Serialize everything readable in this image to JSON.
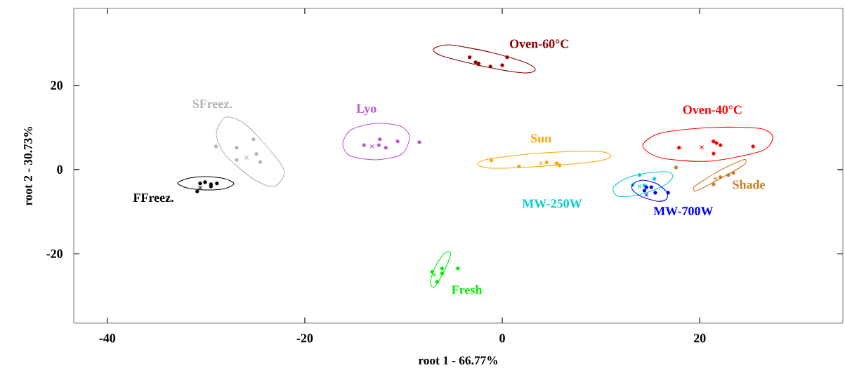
{
  "chart_data": {
    "type": "scatter",
    "xlabel": "root 1 - 66.77%",
    "ylabel": "root 2 - 30.73%",
    "xlim": [
      -43.4,
      34.5
    ],
    "ylim": [
      -36.5,
      38.3
    ],
    "xticks": [
      -40,
      -20,
      0,
      20
    ],
    "yticks": [
      -20,
      0,
      20
    ],
    "series": [
      {
        "name": "Oven-60°C",
        "marker": "circle",
        "color": "#8b0000",
        "x": [
          -3.3,
          -2.4,
          -1.2,
          0.0,
          -2.7,
          0.5
        ],
        "values": [
          26.7,
          25.2,
          24.5,
          24.8,
          25.5,
          26.7
        ]
      },
      {
        "marker": "cross",
        "color": "#8b0000",
        "x": [
          -2.4
        ],
        "values": [
          25.0
        ]
      },
      {
        "name": "SFreez.",
        "marker": "circle",
        "color": "#b3b3b3",
        "x": [
          -25.2,
          -26.9,
          -24.9,
          -24.5,
          -29.0,
          -26.9
        ],
        "values": [
          7.2,
          5.2,
          3.7,
          1.8,
          5.5,
          2.3
        ]
      },
      {
        "marker": "cross",
        "color": "#b3b3b3",
        "x": [
          -25.9
        ],
        "values": [
          2.8
        ]
      },
      {
        "name": "Lyo",
        "marker": "circle",
        "color": "#ba55d3",
        "x": [
          -14.0,
          -12.4,
          -12.5,
          -11.8,
          -10.6,
          -8.4
        ],
        "values": [
          5.8,
          7.2,
          5.8,
          5.2,
          6.7,
          6.5
        ]
      },
      {
        "marker": "cross",
        "color": "#ba55d3",
        "x": [
          -13.2
        ],
        "values": [
          5.5
        ]
      },
      {
        "name": "Oven-40°C",
        "marker": "circle",
        "color": "#ff0000",
        "x": [
          17.9,
          21.4,
          21.7,
          21.4,
          22.1,
          25.4
        ],
        "values": [
          5.2,
          6.7,
          6.3,
          3.8,
          5.8,
          5.5
        ]
      },
      {
        "marker": "cross",
        "color": "#ff0000",
        "x": [
          20.2
        ],
        "values": [
          5.3
        ]
      },
      {
        "name": "Sun",
        "marker": "circle",
        "color": "#ffa500",
        "x": [
          1.7,
          5.5,
          5.8,
          -1.1,
          4.5
        ],
        "values": [
          0.7,
          1.5,
          1.0,
          2.2,
          1.7
        ]
      },
      {
        "marker": "cross",
        "color": "#ffa500",
        "x": [
          3.9
        ],
        "values": [
          1.5
        ]
      },
      {
        "name": "FFreez.",
        "marker": "circle",
        "color": "#000000",
        "x": [
          -30.6,
          -30.1,
          -29.5,
          -28.9,
          -30.9,
          -29.5
        ],
        "values": [
          -3.3,
          -3.0,
          -3.5,
          -3.3,
          -5.2,
          -4.0
        ]
      },
      {
        "marker": "cross",
        "color": "#000000",
        "x": [
          -30.6
        ],
        "values": [
          -4.3
        ]
      },
      {
        "name": "MW-250W",
        "marker": "circle",
        "color": "#00cdcd",
        "x": [
          15.4,
          13.2,
          14.4,
          13.9
        ],
        "values": [
          -2.2,
          -3.7,
          -3.8,
          -1.3
        ]
      },
      {
        "marker": "cross",
        "color": "#00cdcd",
        "x": [
          13.9
        ],
        "values": [
          -4.0
        ]
      },
      {
        "name": "Shade",
        "marker": "circle",
        "color": "#cd7a1f",
        "x": [
          21.4,
          22.1,
          22.9,
          23.4,
          17.6
        ],
        "values": [
          -3.5,
          -1.8,
          -1.3,
          -0.8,
          0.5
        ]
      },
      {
        "marker": "cross",
        "color": "#cd7a1f",
        "x": [
          21.6
        ],
        "values": [
          -2.2
        ]
      },
      {
        "name": "MW-700W",
        "marker": "circle",
        "color": "#0000ff",
        "x": [
          14.6,
          15.1,
          14.4,
          15.5,
          16.8
        ],
        "values": [
          -4.2,
          -4.2,
          -5.0,
          -5.5,
          -5.5
        ]
      },
      {
        "marker": "cross",
        "color": "#0000ff",
        "x": [
          14.6
        ],
        "values": [
          -6.0
        ]
      },
      {
        "name": "Fresh",
        "marker": "circle",
        "color": "#00ee00",
        "x": [
          -6.1,
          -6.1,
          -6.6,
          -7.1,
          -4.5
        ],
        "values": [
          -23.5,
          -24.7,
          -26.7,
          -24.3,
          -23.5
        ]
      },
      {
        "marker": "cross",
        "color": "#00ee00",
        "x": [
          -6.9
        ],
        "values": [
          -25.0
        ]
      }
    ]
  }
}
